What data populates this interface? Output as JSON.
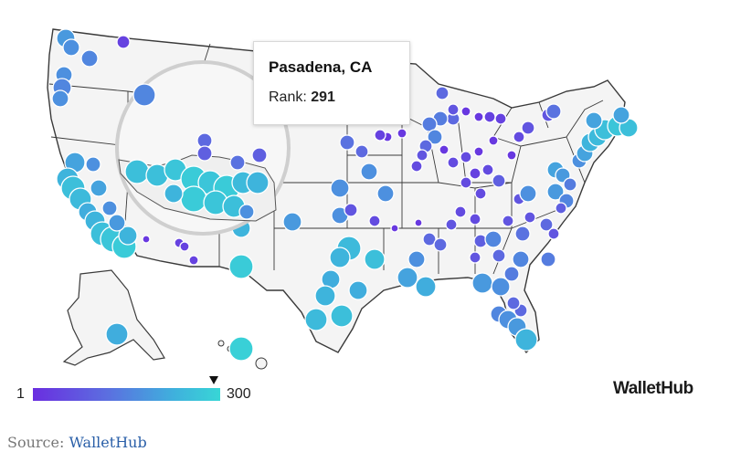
{
  "tooltip": {
    "city": "Pasadena, CA",
    "rank_label": "Rank:",
    "rank_value": "291"
  },
  "legend": {
    "min": "1",
    "max": "300",
    "colors": [
      "#6a2ee0",
      "#5b6fe0",
      "#3fb0dd",
      "#38d6d6"
    ],
    "marker_value": 291
  },
  "brand": "WalletHub",
  "source": {
    "label": "Source:",
    "link_text": "WalletHub"
  },
  "colors": {
    "land": "#f4f4f4",
    "border": "#3a3a3a",
    "low_rank": "#6a2ee0",
    "high_rank": "#38d6d6"
  }
}
